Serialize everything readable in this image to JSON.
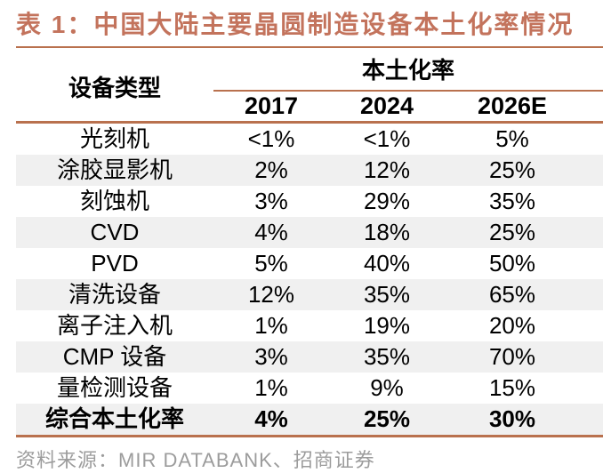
{
  "chart_data": {
    "type": "table",
    "title": "表 1：中国大陆主要晶圆制造设备本土化率情况",
    "column_group_header": "本土化率",
    "columns": [
      "设备类型",
      "2017",
      "2024",
      "2026E"
    ],
    "rows": [
      [
        "光刻机",
        "<1%",
        "<1%",
        "5%"
      ],
      [
        "涂胶显影机",
        "2%",
        "12%",
        "25%"
      ],
      [
        "刻蚀机",
        "3%",
        "29%",
        "35%"
      ],
      [
        "CVD",
        "4%",
        "18%",
        "25%"
      ],
      [
        "PVD",
        "5%",
        "40%",
        "50%"
      ],
      [
        "清洗设备",
        "12%",
        "35%",
        "65%"
      ],
      [
        "离子注入机",
        "1%",
        "19%",
        "20%"
      ],
      [
        "CMP 设备",
        "3%",
        "35%",
        "70%"
      ],
      [
        "量检测设备",
        "1%",
        "9%",
        "15%"
      ],
      [
        "综合本土化率",
        "4%",
        "25%",
        "30%"
      ]
    ],
    "total_row_label": "综合本土化率",
    "source": "资料来源：MIR DATABANK、招商证券",
    "layout": {
      "zebra_striping": true,
      "legend": "none",
      "grid": "horizontal rules only"
    }
  },
  "colors": {
    "accent": "#B9714E",
    "title_text": "#C3735C",
    "zebra_row": "#F0F0F0",
    "source_text": "#9C9C9C",
    "body_text": "#000000"
  }
}
